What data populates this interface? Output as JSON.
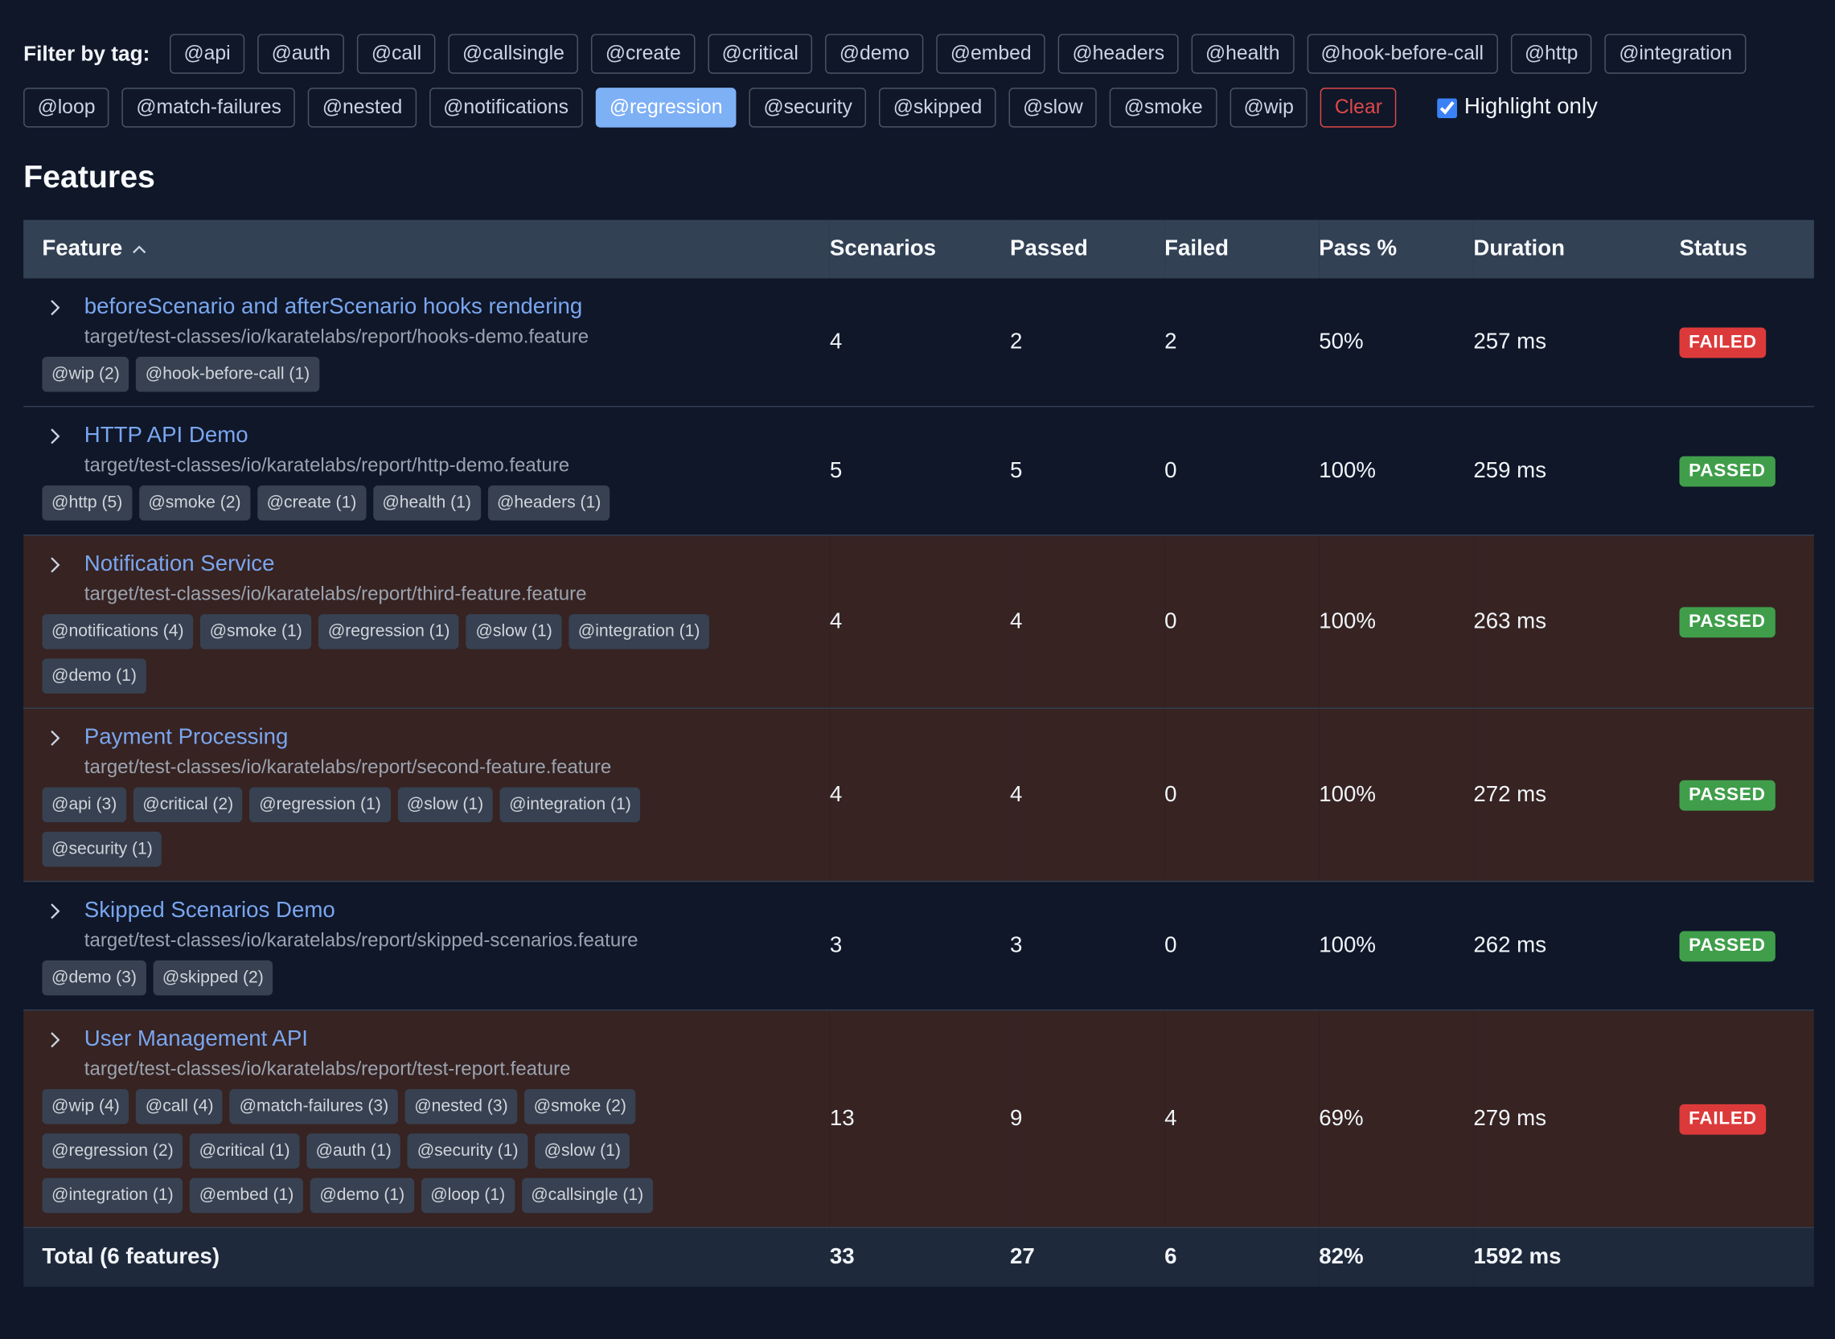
{
  "filter": {
    "label": "Filter by tag:",
    "tags": [
      "@api",
      "@auth",
      "@call",
      "@callsingle",
      "@create",
      "@critical",
      "@demo",
      "@embed",
      "@headers",
      "@health",
      "@hook-before-call",
      "@http",
      "@integration",
      "@loop",
      "@match-failures",
      "@nested",
      "@notifications",
      "@regression",
      "@security",
      "@skipped",
      "@slow",
      "@smoke",
      "@wip"
    ],
    "active_tag": "@regression",
    "clear": "Clear",
    "highlight": {
      "label": "Highlight only",
      "checked": true
    }
  },
  "section_title": "Features",
  "table": {
    "headers": [
      "Feature",
      "Scenarios",
      "Passed",
      "Failed",
      "Pass %",
      "Duration",
      "Status"
    ],
    "rows": [
      {
        "title": "beforeScenario and afterScenario hooks rendering",
        "path": "target/test-classes/io/karatelabs/report/hooks-demo.feature",
        "tags": [
          "@wip (2)",
          "@hook-before-call (1)"
        ],
        "highlighted": false,
        "scenarios": 4,
        "passed": 2,
        "failed": 2,
        "pass_pct": "50%",
        "duration": "257 ms",
        "status": "FAILED",
        "status_color": "#dc3a3a"
      },
      {
        "title": "HTTP API Demo",
        "path": "target/test-classes/io/karatelabs/report/http-demo.feature",
        "tags": [
          "@http (5)",
          "@smoke (2)",
          "@create (1)",
          "@health (1)",
          "@headers (1)"
        ],
        "highlighted": false,
        "scenarios": 5,
        "passed": 5,
        "failed": 0,
        "pass_pct": "100%",
        "duration": "259 ms",
        "status": "PASSED",
        "status_color": "#409e4b"
      },
      {
        "title": "Notification Service",
        "path": "target/test-classes/io/karatelabs/report/third-feature.feature",
        "tags": [
          "@notifications (4)",
          "@smoke (1)",
          "@regression (1)",
          "@slow (1)",
          "@integration (1)",
          "@demo (1)"
        ],
        "highlighted": true,
        "scenarios": 4,
        "passed": 4,
        "failed": 0,
        "pass_pct": "100%",
        "duration": "263 ms",
        "status": "PASSED",
        "status_color": "#409e4b"
      },
      {
        "title": "Payment Processing",
        "path": "target/test-classes/io/karatelabs/report/second-feature.feature",
        "tags": [
          "@api (3)",
          "@critical (2)",
          "@regression (1)",
          "@slow (1)",
          "@integration (1)",
          "@security (1)"
        ],
        "highlighted": true,
        "scenarios": 4,
        "passed": 4,
        "failed": 0,
        "pass_pct": "100%",
        "duration": "272 ms",
        "status": "PASSED",
        "status_color": "#409e4b"
      },
      {
        "title": "Skipped Scenarios Demo",
        "path": "target/test-classes/io/karatelabs/report/skipped-scenarios.feature",
        "tags": [
          "@demo (3)",
          "@skipped (2)"
        ],
        "highlighted": false,
        "scenarios": 3,
        "passed": 3,
        "failed": 0,
        "pass_pct": "100%",
        "duration": "262 ms",
        "status": "PASSED",
        "status_color": "#409e4b"
      },
      {
        "title": "User Management API",
        "path": "target/test-classes/io/karatelabs/report/test-report.feature",
        "tags": [
          "@wip (4)",
          "@call (4)",
          "@match-failures (3)",
          "@nested (3)",
          "@smoke (2)",
          "@regression (2)",
          "@critical (1)",
          "@auth (1)",
          "@security (1)",
          "@slow (1)",
          "@integration (1)",
          "@embed (1)",
          "@demo (1)",
          "@loop (1)",
          "@callsingle (1)"
        ],
        "highlighted": true,
        "scenarios": 13,
        "passed": 9,
        "failed": 4,
        "pass_pct": "69%",
        "duration": "279 ms",
        "status": "FAILED",
        "status_color": "#dc3a3a"
      }
    ],
    "total": {
      "label": "Total (6 features)",
      "scenarios": 33,
      "passed": 27,
      "failed": 6,
      "pass_pct": "82%",
      "duration": "1592 ms"
    }
  }
}
